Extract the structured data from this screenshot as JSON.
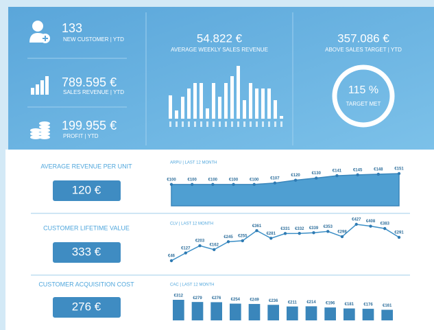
{
  "kpis": [
    {
      "value": "133",
      "label": "NEW CUSTOMER | YTD"
    },
    {
      "value": "789.595 €",
      "label": "SALES REVENUE | YTD"
    },
    {
      "value": "199.955 €",
      "label": "PROFIT | YTD"
    }
  ],
  "weekly": {
    "value": "54.822 €",
    "label": "AVERAGE WEEKLY SALES REVENUE",
    "chart": {
      "type": "bar",
      "color": "#ffffff",
      "values": [
        34,
        12,
        32,
        44,
        52,
        52,
        15,
        52,
        32,
        52,
        62,
        77,
        27,
        52,
        44,
        44,
        44,
        27,
        4
      ]
    }
  },
  "target": {
    "value": "357.086 €",
    "label": "ABOVE SALES TARGET | YTD",
    "ring_value": "115 %",
    "ring_label": "TARGET MET"
  },
  "metrics": [
    {
      "title": "AVERAGE REVENUE PER UNIT",
      "value": "120 €",
      "chart": {
        "type": "area",
        "title": "ARPU | LAST 12 MONTH",
        "color": "#4f9fd2",
        "values": [
          100,
          100,
          100,
          100,
          100,
          107,
          120,
          130,
          141,
          145,
          148,
          151
        ],
        "value_labels": [
          "€100",
          "€100",
          "€100",
          "€100",
          "€100",
          "€107",
          "€120",
          "€130",
          "€141",
          "€145",
          "€148",
          "€151"
        ]
      }
    },
    {
      "title": "CUSTOMER LIFETIME VALUE",
      "value": "333 €",
      "chart": {
        "type": "line",
        "title": "CLV | LAST 12 MONTH",
        "color": "#3a8ec6",
        "values": [
          46,
          127,
          203,
          162,
          245,
          255,
          361,
          281,
          331,
          332,
          339,
          353,
          298,
          427,
          408,
          383,
          291
        ],
        "value_labels": [
          "€46",
          "€127",
          "€203",
          "€162",
          "€245",
          "€255",
          "€361",
          "€281",
          "€331",
          "€332",
          "€339",
          "€353",
          "€298",
          "€427",
          "€408",
          "€383",
          "€291"
        ]
      }
    },
    {
      "title": "CUSTOMER ACQUISITION COST",
      "value": "276 €",
      "chart": {
        "type": "bar",
        "title": "CAC | LAST 12 MONTH",
        "color": "#3a86bb",
        "values": [
          312,
          279,
          276,
          254,
          249,
          236,
          211,
          214,
          196,
          181,
          176,
          161
        ],
        "value_labels": [
          "€312",
          "€279",
          "€276",
          "€254",
          "€249",
          "€236",
          "€211",
          "€214",
          "€196",
          "€181",
          "€176",
          "€161"
        ]
      }
    }
  ]
}
